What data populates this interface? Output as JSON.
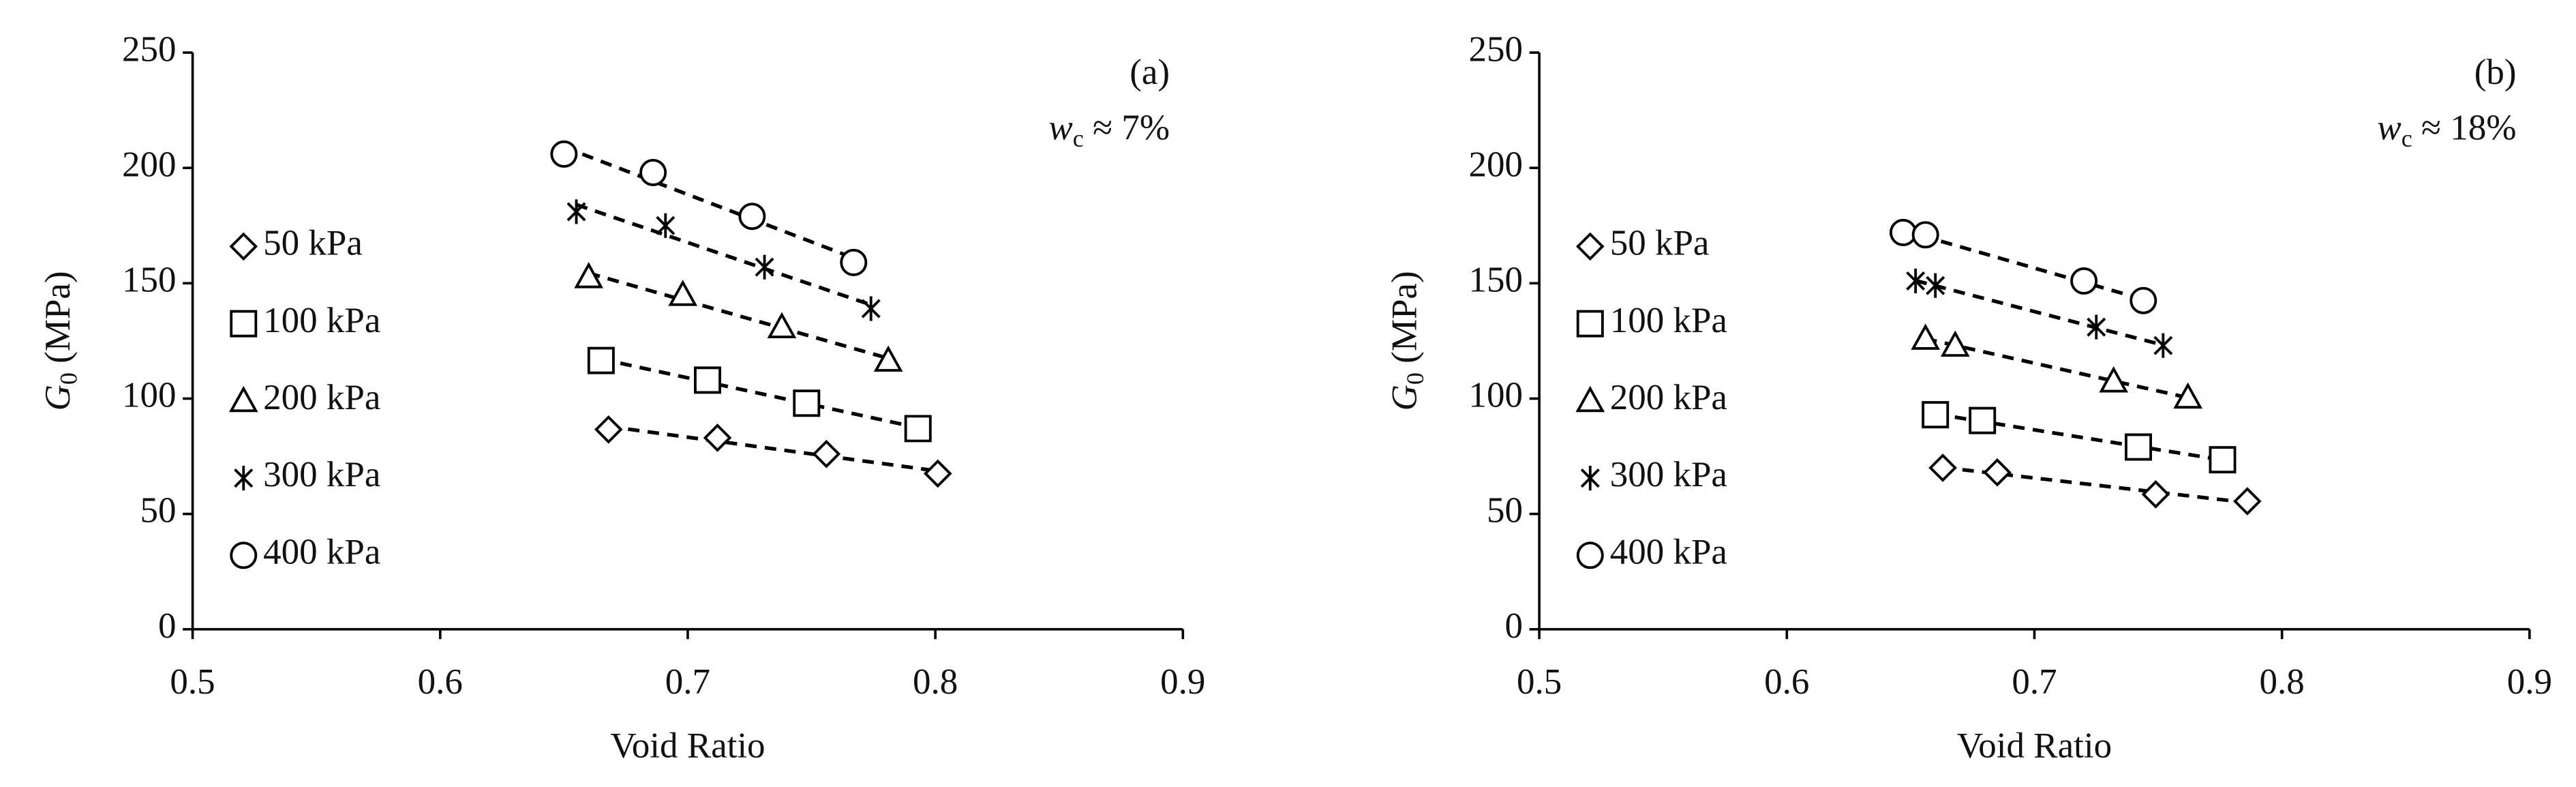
{
  "chart_data": [
    {
      "type": "scatter",
      "panel_label": "(a)",
      "annotation": {
        "symbol": "w",
        "subscript": "c",
        "text": " ≈ 7%"
      },
      "xlabel": "Void Ratio",
      "ylabel": {
        "symbol": "G",
        "subscript": "0",
        "text": " (MPa)"
      },
      "xlim": [
        0.5,
        0.9
      ],
      "xticks": [
        0.5,
        0.6,
        0.7,
        0.8,
        0.9
      ],
      "ylim": [
        0,
        250
      ],
      "yticks": [
        0,
        50,
        100,
        150,
        200,
        250
      ],
      "legend": "left",
      "trendline": "linear",
      "series": [
        {
          "name": "50 kPa",
          "marker": "diamond",
          "color": "#000000",
          "x": [
            0.668,
            0.712,
            0.756,
            0.801
          ],
          "y": [
            86.6,
            83,
            76,
            67.5
          ]
        },
        {
          "name": "100 kPa",
          "marker": "square",
          "color": "#000000",
          "x": [
            0.665,
            0.708,
            0.748,
            0.793
          ],
          "y": [
            116.5,
            108,
            98,
            87
          ]
        },
        {
          "name": "200 kPa",
          "marker": "triangle",
          "color": "#000000",
          "x": [
            0.66,
            0.698,
            0.738,
            0.781
          ],
          "y": [
            152.7,
            145,
            131,
            116.5
          ]
        },
        {
          "name": "300 kPa",
          "marker": "asterisk",
          "color": "#000000",
          "x": [
            0.655,
            0.691,
            0.731,
            0.774
          ],
          "y": [
            181,
            175,
            157,
            139
          ]
        },
        {
          "name": "400 kPa",
          "marker": "circle",
          "color": "#000000",
          "x": [
            0.65,
            0.686,
            0.726,
            0.767
          ],
          "y": [
            206,
            198,
            179,
            159
          ]
        }
      ]
    },
    {
      "type": "scatter",
      "panel_label": "(b)",
      "annotation": {
        "symbol": "w",
        "subscript": "c",
        "text": " ≈ 18%"
      },
      "xlabel": "Void Ratio",
      "ylabel": {
        "symbol": "G",
        "subscript": "0",
        "text": " (MPa)"
      },
      "xlim": [
        0.5,
        0.9
      ],
      "xticks": [
        0.5,
        0.6,
        0.7,
        0.8,
        0.9
      ],
      "ylim": [
        0,
        250
      ],
      "yticks": [
        0,
        50,
        100,
        150,
        200,
        250
      ],
      "legend": "left",
      "trendline": "linear",
      "series": [
        {
          "name": "50 kPa",
          "marker": "diamond",
          "color": "#000000",
          "x": [
            0.663,
            0.685,
            0.749,
            0.786
          ],
          "y": [
            70,
            68,
            58.5,
            55.5
          ]
        },
        {
          "name": "100 kPa",
          "marker": "square",
          "color": "#000000",
          "x": [
            0.66,
            0.679,
            0.742,
            0.776
          ],
          "y": [
            93,
            90.5,
            79,
            73.5
          ]
        },
        {
          "name": "200 kPa",
          "marker": "triangle",
          "color": "#000000",
          "x": [
            0.656,
            0.668,
            0.732,
            0.762
          ],
          "y": [
            126,
            123,
            107.5,
            100.5
          ]
        },
        {
          "name": "300 kPa",
          "marker": "asterisk",
          "color": "#000000",
          "x": [
            0.652,
            0.66,
            0.725,
            0.752
          ],
          "y": [
            151,
            149,
            131,
            123
          ]
        },
        {
          "name": "400 kPa",
          "marker": "circle",
          "color": "#000000",
          "x": [
            0.647,
            0.656,
            0.72,
            0.744
          ],
          "y": [
            172,
            171,
            151,
            142.5
          ]
        }
      ]
    }
  ]
}
